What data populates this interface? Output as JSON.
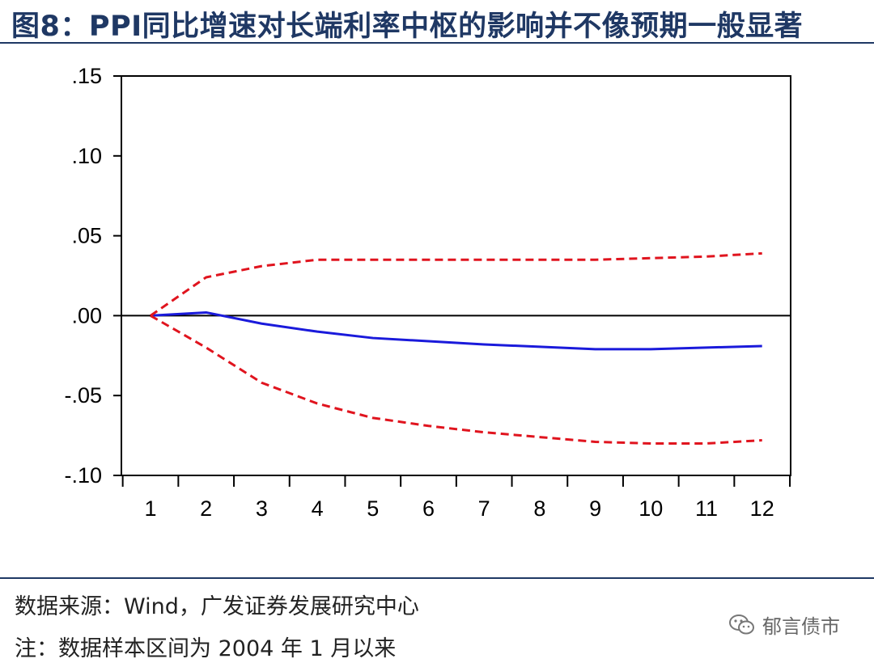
{
  "title": "图8：PPI同比增速对长端利率中枢的影响并不像预期一般显著",
  "source_text": "数据来源：Wind，广发证券发展研究中心",
  "note_text": "注：数据样本区间为 2004 年 1 月以来",
  "watermark": {
    "text": "郁言债市",
    "icon": "wechat-icon"
  },
  "colors": {
    "title": "#1f3864",
    "response": "#1a1adb",
    "bands": "#e0141e",
    "axis": "#000000"
  },
  "chart_data": {
    "type": "line",
    "title": "",
    "xlabel": "",
    "ylabel": "",
    "x": [
      1,
      2,
      3,
      4,
      5,
      6,
      7,
      8,
      9,
      10,
      11,
      12
    ],
    "x_tick_labels": [
      "1",
      "2",
      "3",
      "4",
      "5",
      "6",
      "7",
      "8",
      "9",
      "10",
      "11",
      "12"
    ],
    "ylim": [
      -0.1,
      0.15
    ],
    "y_ticks": [
      0.15,
      0.1,
      0.05,
      0.0,
      -0.05,
      -0.1
    ],
    "y_tick_labels": [
      ".15",
      ".10",
      ".05",
      ".00",
      "-.05",
      "-.10"
    ],
    "zero_line": true,
    "grid": false,
    "legend": false,
    "series": [
      {
        "style": "solid",
        "color": "#1a1adb",
        "values": [
          0.0,
          0.002,
          -0.005,
          -0.01,
          -0.014,
          -0.016,
          -0.018,
          -0.0195,
          -0.021,
          -0.021,
          -0.02,
          -0.019
        ]
      },
      {
        "style": "dashed",
        "color": "#e0141e",
        "values": [
          0.0,
          0.024,
          0.031,
          0.035,
          0.035,
          0.035,
          0.035,
          0.035,
          0.035,
          0.036,
          0.037,
          0.039
        ]
      },
      {
        "style": "dashed",
        "color": "#e0141e",
        "values": [
          0.0,
          -0.02,
          -0.042,
          -0.055,
          -0.064,
          -0.069,
          -0.073,
          -0.076,
          -0.079,
          -0.08,
          -0.08,
          -0.078
        ]
      }
    ]
  }
}
